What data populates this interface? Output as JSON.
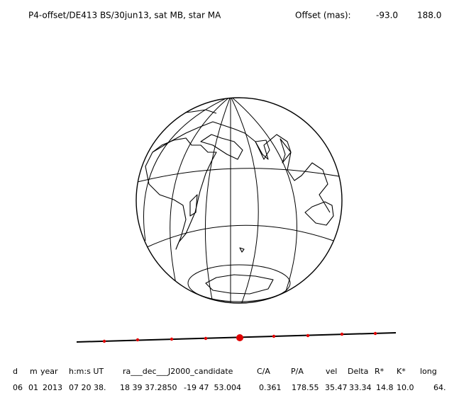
{
  "header": {
    "title": "P4-offset/DE413 BS/30jun13, sat MB, star MA",
    "offset_label": "Offset (mas):",
    "offset_values": [
      "-93.0",
      "188.0"
    ]
  },
  "table": {
    "columns": [
      "d",
      "m",
      "year",
      "h:m:s UT",
      "ra___dec___J2000_candidate",
      "C/A",
      "P/A",
      "vel",
      "Delta",
      "R*",
      "K*",
      "long"
    ],
    "row": [
      "06",
      "01",
      "2013",
      "07 20 38.",
      "18 39 37.2850",
      "-19 47  53.004",
      "0.361",
      "178.55",
      "35.47",
      "33.34",
      "14.8",
      "10.0",
      "64."
    ]
  }
}
